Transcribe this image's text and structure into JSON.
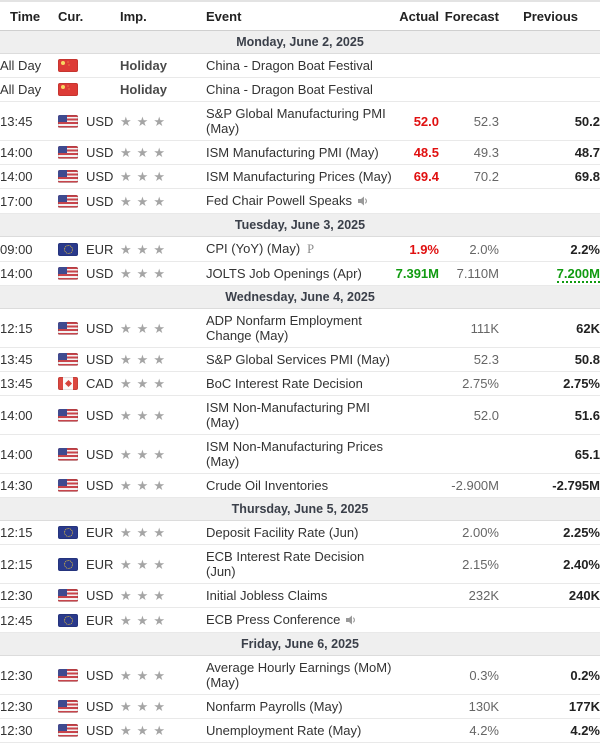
{
  "table": {
    "columns": [
      "Time",
      "Cur.",
      "Imp.",
      "Event",
      "Actual",
      "Forecast",
      "Previous"
    ]
  },
  "colors": {
    "up": "#119b11",
    "down": "#e01010",
    "date_band_bg": "#efefef"
  },
  "icons": {
    "preliminary_label": "P",
    "speaker": "speaker-icon"
  },
  "days": [
    {
      "date": "Monday, June 2, 2025",
      "events": [
        {
          "time": "All Day",
          "flag": "CN",
          "currency": "",
          "holiday_label": "Holiday",
          "event": "China - Dragon Boat Festival",
          "actual": "",
          "forecast": "",
          "previous": ""
        },
        {
          "time": "All Day",
          "flag": "CN",
          "currency": "",
          "holiday_label": "Holiday",
          "event": "China - Dragon Boat Festival",
          "actual": "",
          "forecast": "",
          "previous": ""
        },
        {
          "time": "13:45",
          "flag": "US",
          "currency": "USD",
          "stars": 3,
          "event": "S&P Global Manufacturing PMI (May)",
          "actual": "52.0",
          "actual_color": "down",
          "forecast": "52.3",
          "previous": "50.2"
        },
        {
          "time": "14:00",
          "flag": "US",
          "currency": "USD",
          "stars": 3,
          "event": "ISM Manufacturing PMI (May)",
          "actual": "48.5",
          "actual_color": "down",
          "forecast": "49.3",
          "previous": "48.7"
        },
        {
          "time": "14:00",
          "flag": "US",
          "currency": "USD",
          "stars": 3,
          "event": "ISM Manufacturing Prices (May)",
          "actual": "69.4",
          "actual_color": "down",
          "forecast": "70.2",
          "previous": "69.8"
        },
        {
          "time": "17:00",
          "flag": "US",
          "currency": "USD",
          "stars": 3,
          "event": "Fed Chair Powell Speaks",
          "icon": "speaker",
          "actual": "",
          "forecast": "",
          "previous": ""
        }
      ]
    },
    {
      "date": "Tuesday, June 3, 2025",
      "events": [
        {
          "time": "09:00",
          "flag": "EU",
          "currency": "EUR",
          "stars": 3,
          "event": "CPI (YoY) (May)",
          "icon": "preliminary",
          "actual": "1.9%",
          "actual_color": "down",
          "forecast": "2.0%",
          "previous": "2.2%"
        },
        {
          "time": "14:00",
          "flag": "US",
          "currency": "USD",
          "stars": 3,
          "event": "JOLTS Job Openings (Apr)",
          "actual": "7.391M",
          "actual_color": "up",
          "forecast": "7.110M",
          "previous": "7.200M",
          "previous_color": "up",
          "previous_revised": true
        }
      ]
    },
    {
      "date": "Wednesday, June 4, 2025",
      "events": [
        {
          "time": "12:15",
          "flag": "US",
          "currency": "USD",
          "stars": 3,
          "event": "ADP Nonfarm Employment Change (May)",
          "actual": "",
          "forecast": "111K",
          "previous": "62K"
        },
        {
          "time": "13:45",
          "flag": "US",
          "currency": "USD",
          "stars": 3,
          "event": "S&P Global Services PMI (May)",
          "actual": "",
          "forecast": "52.3",
          "previous": "50.8"
        },
        {
          "time": "13:45",
          "flag": "CA",
          "currency": "CAD",
          "stars": 3,
          "event": "BoC Interest Rate Decision",
          "actual": "",
          "forecast": "2.75%",
          "previous": "2.75%"
        },
        {
          "time": "14:00",
          "flag": "US",
          "currency": "USD",
          "stars": 3,
          "event": "ISM Non-Manufacturing PMI (May)",
          "actual": "",
          "forecast": "52.0",
          "previous": "51.6"
        },
        {
          "time": "14:00",
          "flag": "US",
          "currency": "USD",
          "stars": 3,
          "event": "ISM Non-Manufacturing Prices (May)",
          "actual": "",
          "forecast": "",
          "previous": "65.1"
        },
        {
          "time": "14:30",
          "flag": "US",
          "currency": "USD",
          "stars": 3,
          "event": "Crude Oil Inventories",
          "actual": "",
          "forecast": "-2.900M",
          "previous": "-2.795M"
        }
      ]
    },
    {
      "date": "Thursday, June 5, 2025",
      "events": [
        {
          "time": "12:15",
          "flag": "EU",
          "currency": "EUR",
          "stars": 3,
          "event": "Deposit Facility Rate (Jun)",
          "actual": "",
          "forecast": "2.00%",
          "previous": "2.25%"
        },
        {
          "time": "12:15",
          "flag": "EU",
          "currency": "EUR",
          "stars": 3,
          "event": "ECB Interest Rate Decision (Jun)",
          "actual": "",
          "forecast": "2.15%",
          "previous": "2.40%"
        },
        {
          "time": "12:30",
          "flag": "US",
          "currency": "USD",
          "stars": 3,
          "event": "Initial Jobless Claims",
          "actual": "",
          "forecast": "232K",
          "previous": "240K"
        },
        {
          "time": "12:45",
          "flag": "EU",
          "currency": "EUR",
          "stars": 3,
          "event": "ECB Press Conference",
          "icon": "speaker",
          "actual": "",
          "forecast": "",
          "previous": ""
        }
      ]
    },
    {
      "date": "Friday, June 6, 2025",
      "events": [
        {
          "time": "12:30",
          "flag": "US",
          "currency": "USD",
          "stars": 3,
          "event": "Average Hourly Earnings (MoM) (May)",
          "actual": "",
          "forecast": "0.3%",
          "previous": "0.2%"
        },
        {
          "time": "12:30",
          "flag": "US",
          "currency": "USD",
          "stars": 3,
          "event": "Nonfarm Payrolls (May)",
          "actual": "",
          "forecast": "130K",
          "previous": "177K"
        },
        {
          "time": "12:30",
          "flag": "US",
          "currency": "USD",
          "stars": 3,
          "event": "Unemployment Rate (May)",
          "actual": "",
          "forecast": "4.2%",
          "previous": "4.2%"
        }
      ]
    }
  ]
}
